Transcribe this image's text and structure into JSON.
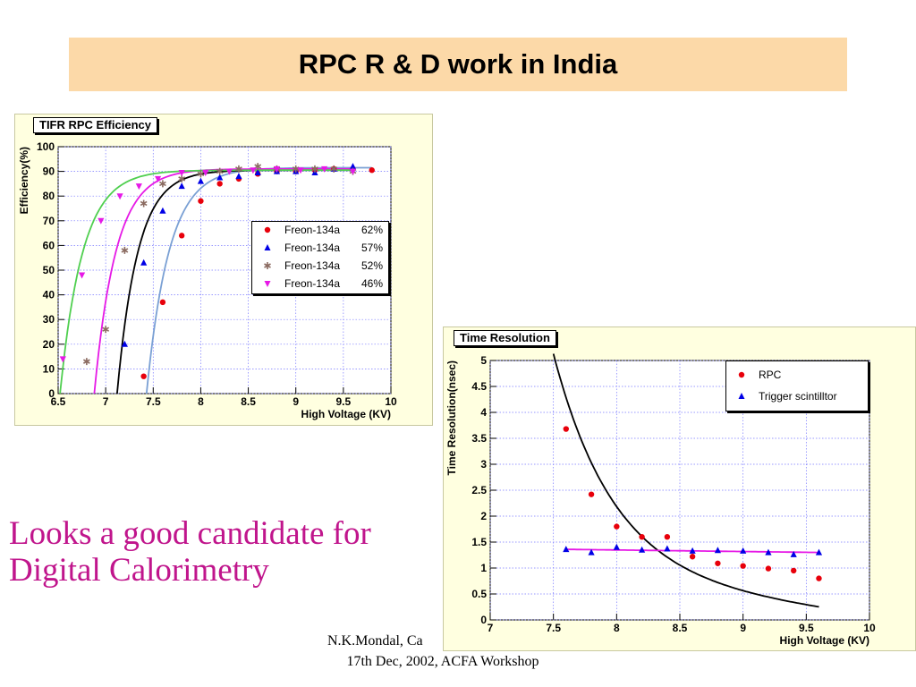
{
  "slide": {
    "title": "RPC R & D  work in India",
    "caption_line1": "Looks a good candidate for",
    "caption_line2": "Digital Calorimetry",
    "footer_line1": "N.K.Mondal, Ca",
    "footer_line2": "17th Dec, 2002, ACFA Workshop",
    "title_bg_color": "#fcd9a8",
    "caption_color": "#c0158c"
  },
  "chart_data": [
    {
      "type": "scatter",
      "title": "TIFR RPC Efficiency",
      "xlabel": "High Voltage (KV)",
      "ylabel": "Efficiency(%)",
      "xlim": [
        6.5,
        10
      ],
      "ylim": [
        0,
        100
      ],
      "xticks": [
        "6.5",
        "7",
        "7.5",
        "8",
        "8.5",
        "9",
        "9.5",
        "10"
      ],
      "yticks": [
        "0",
        "10",
        "20",
        "30",
        "40",
        "50",
        "60",
        "70",
        "80",
        "90",
        "100"
      ],
      "grid": true,
      "legend_position": "center-right",
      "series": [
        {
          "name": "Freon-134a",
          "percent": "62%",
          "marker": "circle",
          "color": "#e8000b",
          "fit_color": "#7aa0d4",
          "x": [
            7.4,
            7.6,
            7.8,
            8.0,
            8.2,
            8.4,
            8.6,
            8.8,
            9.0,
            9.2,
            9.4,
            9.6,
            9.8
          ],
          "y": [
            7,
            37,
            64,
            78,
            85,
            87,
            89,
            90,
            90,
            90.5,
            91,
            91,
            90.5
          ]
        },
        {
          "name": "Freon-134a",
          "percent": "57%",
          "marker": "triangle-up",
          "color": "#0000e6",
          "fit_color": "#000000",
          "x": [
            7.2,
            7.4,
            7.6,
            7.8,
            8.0,
            8.2,
            8.4,
            8.6,
            8.8,
            9.0,
            9.2,
            9.4,
            9.6
          ],
          "y": [
            20,
            53,
            74,
            84,
            86,
            87.5,
            88,
            89.5,
            90,
            90,
            89.5,
            91,
            92
          ]
        },
        {
          "name": "Freon-134a",
          "percent": "52%",
          "marker": "star",
          "color": "#8b6b61",
          "fit_color": "#e619e6",
          "x": [
            6.8,
            7.0,
            7.2,
            7.4,
            7.6,
            7.8,
            8.0,
            8.2,
            8.4,
            8.6,
            8.8,
            9.0,
            9.2,
            9.4,
            9.6
          ],
          "y": [
            13,
            26,
            58,
            77,
            85,
            87,
            89,
            90,
            91,
            92,
            91,
            91,
            91,
            91,
            90
          ]
        },
        {
          "name": "Freon-134a",
          "percent": "46%",
          "marker": "triangle-down",
          "color": "#e619e6",
          "fit_color": "#4fcf4f",
          "x": [
            6.55,
            6.75,
            6.95,
            7.15,
            7.35,
            7.55,
            7.8,
            8.05,
            8.3,
            8.55,
            8.8,
            9.05,
            9.3,
            9.6
          ],
          "y": [
            14,
            48,
            70,
            80,
            84,
            87,
            89.5,
            89.5,
            90,
            90.5,
            91,
            90.5,
            91,
            90
          ]
        }
      ]
    },
    {
      "type": "scatter",
      "title": "Time Resolution",
      "xlabel": "High Voltage (KV)",
      "ylabel": "Time Resolution(nsec)",
      "xlim": [
        7,
        10
      ],
      "ylim": [
        0,
        5
      ],
      "xticks": [
        "7",
        "7.5",
        "8",
        "8.5",
        "9",
        "9.5",
        "10"
      ],
      "yticks": [
        "0",
        "0.5",
        "1",
        "1.5",
        "2",
        "2.5",
        "3",
        "3.5",
        "4",
        "4.5",
        "5"
      ],
      "grid": true,
      "legend_position": "top-right",
      "series": [
        {
          "name": "RPC",
          "marker": "circle",
          "color": "#e8000b",
          "fit_color": "#000000",
          "x": [
            7.6,
            7.8,
            8.0,
            8.2,
            8.4,
            8.6,
            8.8,
            9.0,
            9.2,
            9.4,
            9.6
          ],
          "y": [
            3.68,
            2.42,
            1.8,
            1.6,
            1.6,
            1.22,
            1.09,
            1.04,
            0.99,
            0.95,
            0.8
          ]
        },
        {
          "name": "Trigger scintilltor",
          "marker": "triangle-up",
          "color": "#0000e6",
          "fit_color": "#e619e6",
          "x": [
            7.6,
            7.8,
            8.0,
            8.2,
            8.4,
            8.6,
            8.8,
            9.0,
            9.2,
            9.4,
            9.6
          ],
          "y": [
            1.36,
            1.3,
            1.4,
            1.35,
            1.37,
            1.33,
            1.34,
            1.33,
            1.3,
            1.26,
            1.3
          ]
        }
      ]
    }
  ]
}
